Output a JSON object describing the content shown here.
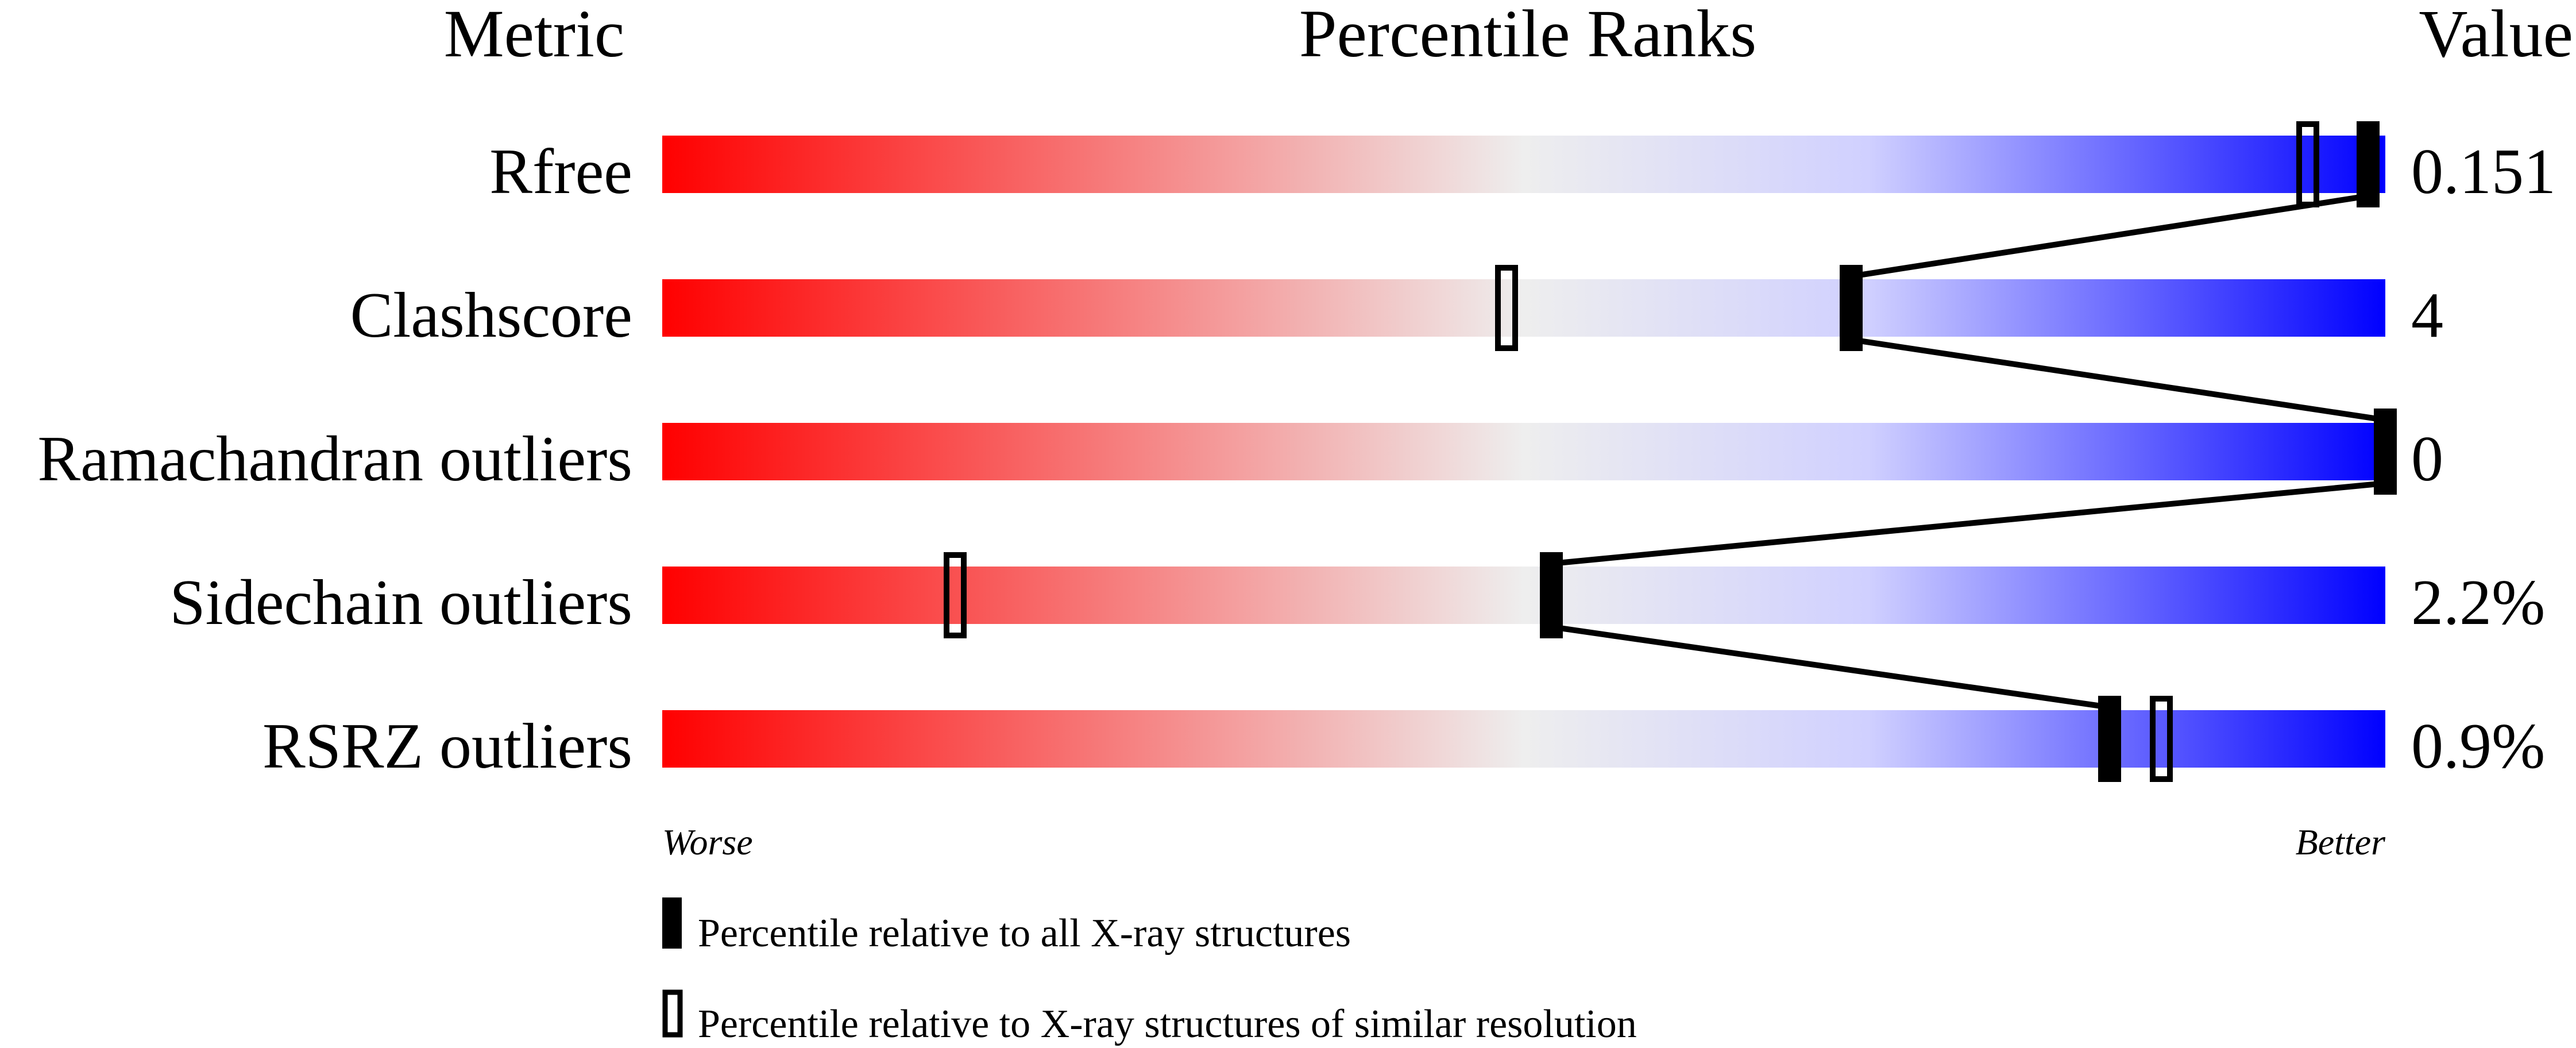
{
  "chart_data": {
    "type": "bar",
    "headers": {
      "metric": "Metric",
      "percentile": "Percentile Ranks",
      "value": "Value"
    },
    "xlim": [
      0,
      100
    ],
    "axis_labels": {
      "worse": "Worse",
      "better": "Better"
    },
    "gradient_colors": {
      "worse": "#ff0000",
      "middle": "#eeeeee",
      "light_blue": "#d0d0ff",
      "better": "#0000ff"
    },
    "metrics": [
      {
        "name": "Rfree",
        "value": "0.151",
        "percentile_all": 99,
        "percentile_similar": 95.5
      },
      {
        "name": "Clashscore",
        "value": "4",
        "percentile_all": 69,
        "percentile_similar": 49
      },
      {
        "name": "Ramachandran outliers",
        "value": "0",
        "percentile_all": 100,
        "percentile_similar": null
      },
      {
        "name": "Sidechain outliers",
        "value": "2.2%",
        "percentile_all": 51.6,
        "percentile_similar": 17
      },
      {
        "name": "RSRZ outliers",
        "value": "0.9%",
        "percentile_all": 84,
        "percentile_similar": 87
      }
    ],
    "legend": {
      "all": "Percentile relative to all X-ray structures",
      "similar": "Percentile relative to X-ray structures of similar resolution"
    }
  }
}
